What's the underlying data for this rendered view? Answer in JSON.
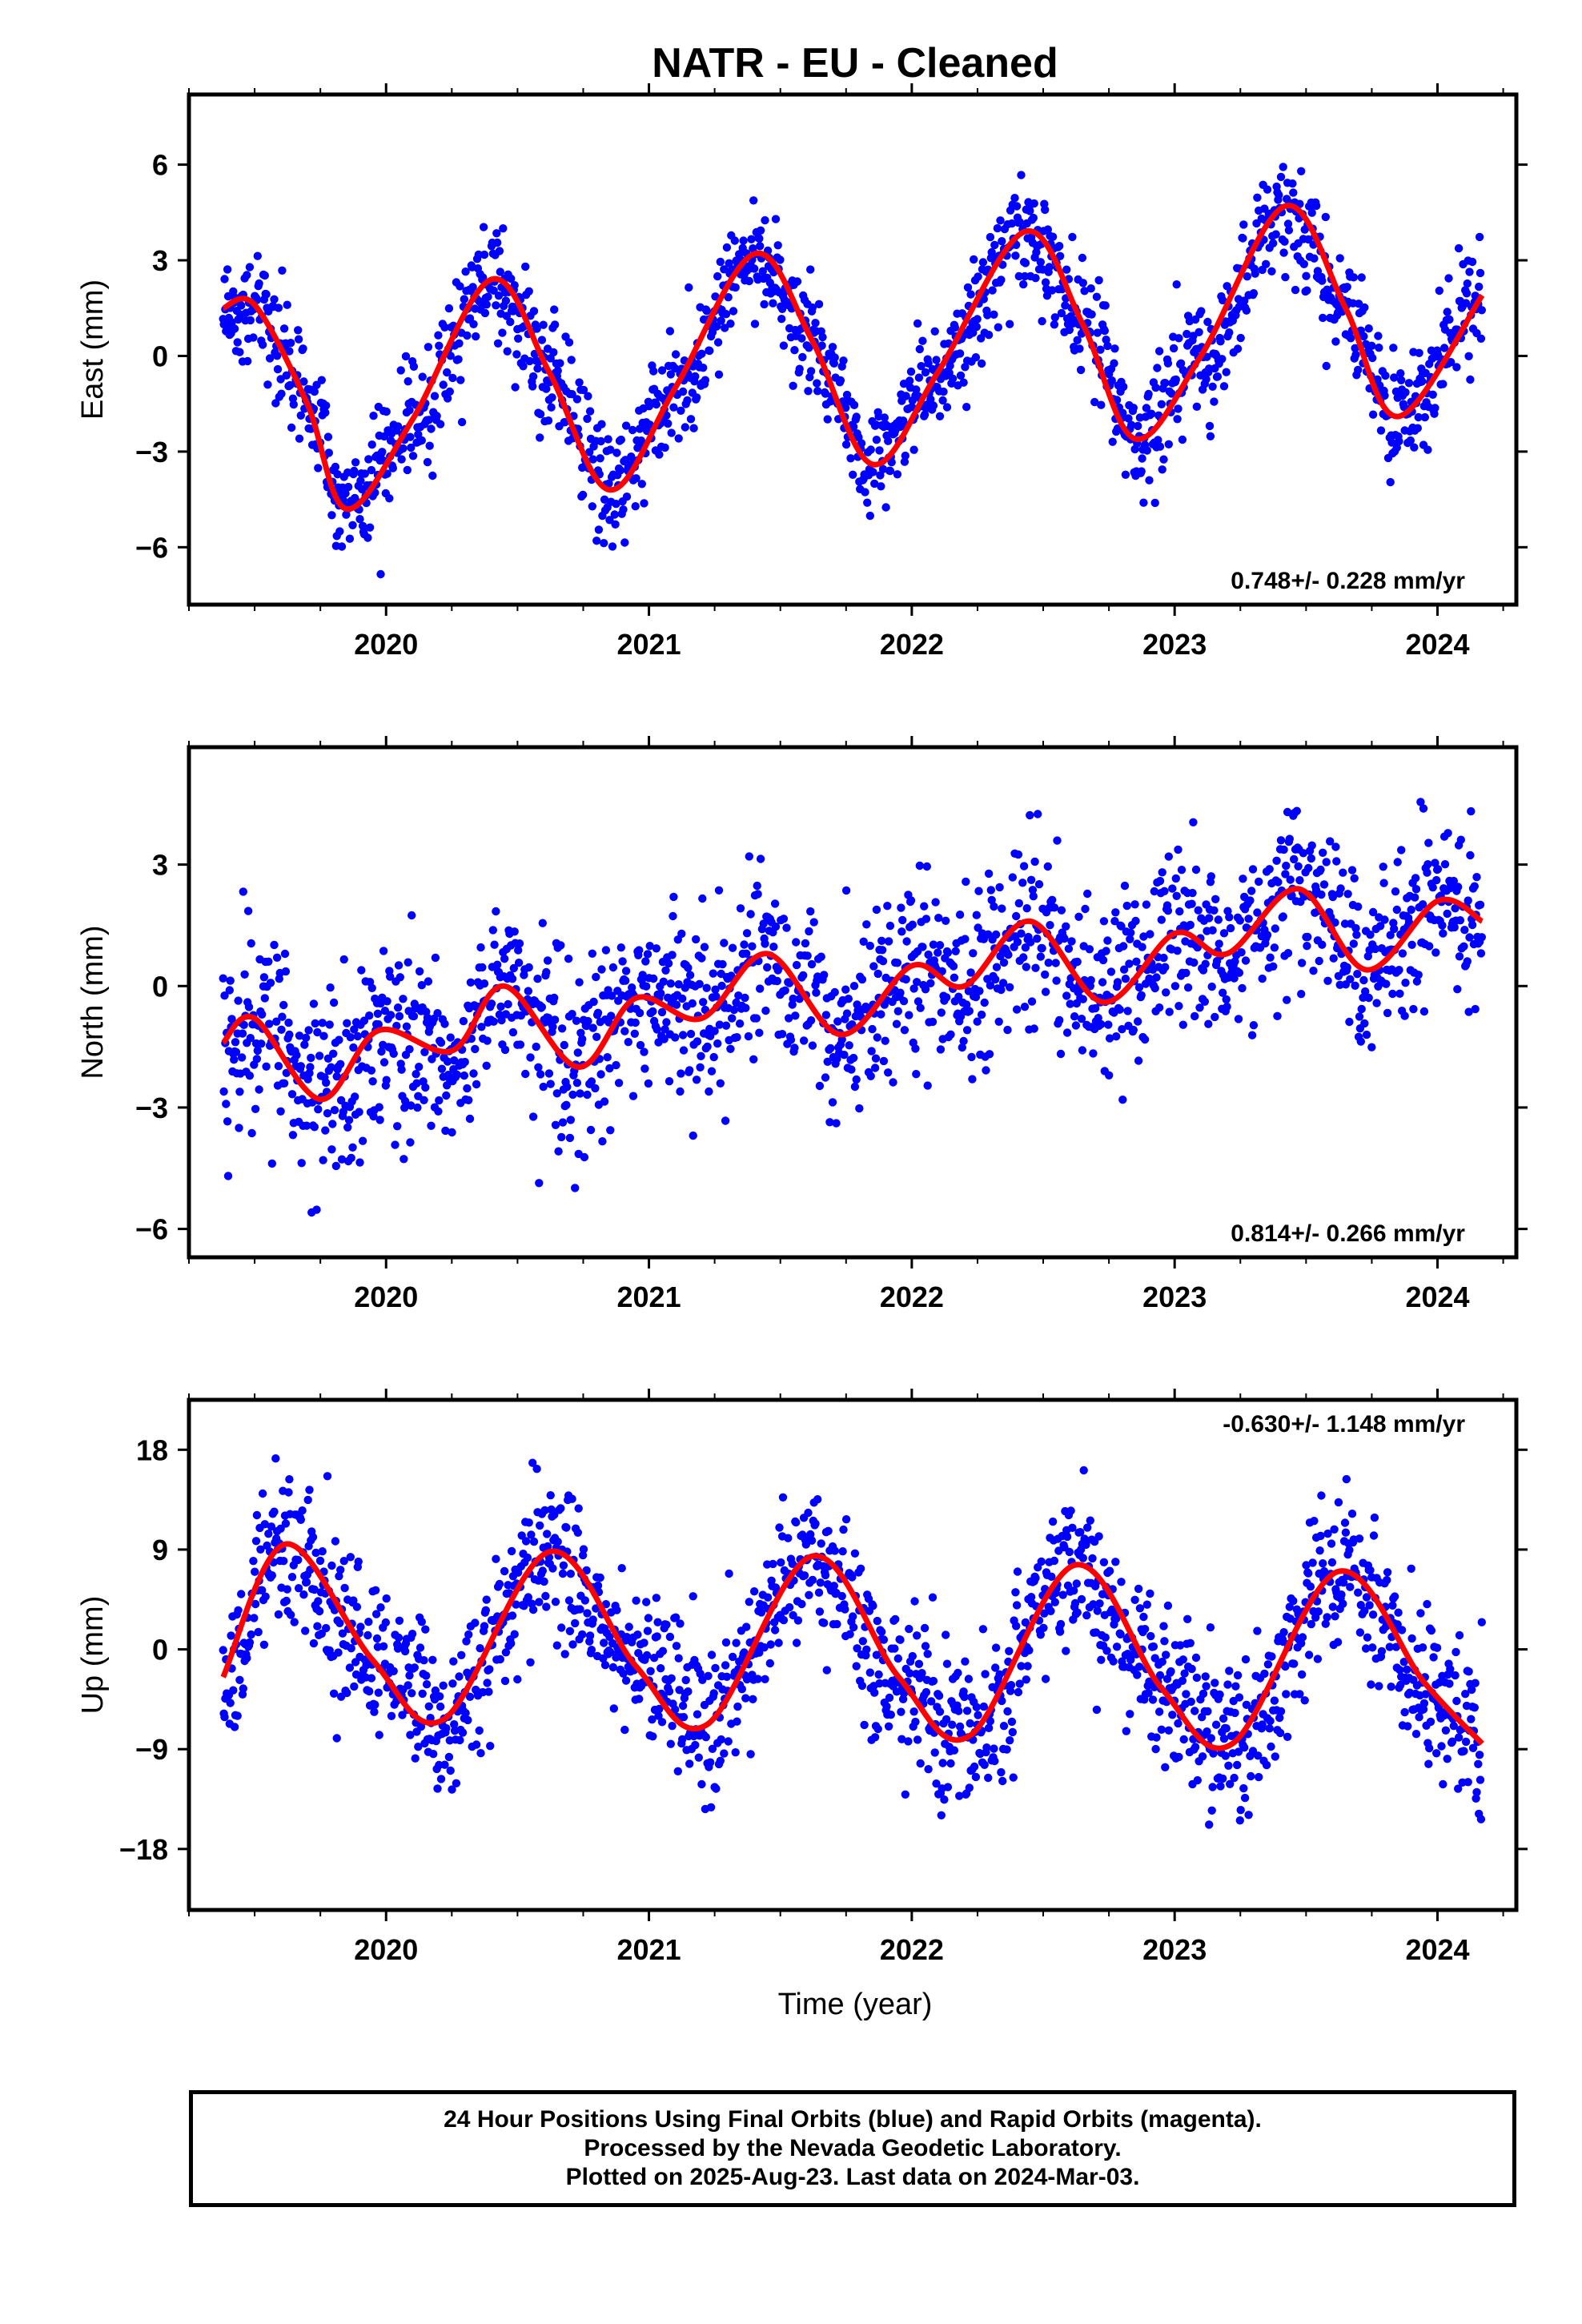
{
  "colors": {
    "final_orbits": "#0000ff",
    "model_fit": "#ff0000",
    "axes": "#000000"
  },
  "chart_data": {
    "type": "scatter",
    "title": "NATR  - EU - Cleaned",
    "xlabel": "Time (year)",
    "xlim": [
      2019.25,
      2024.3
    ],
    "xticks": [
      "2020",
      "2021",
      "2022",
      "2023",
      "2024"
    ],
    "xtick_values": [
      2020,
      2021,
      2022,
      2023,
      2024
    ],
    "last_data": 2024.17,
    "panels": [
      {
        "component": "East",
        "ylabel": "East (mm)",
        "ylim": [
          -7.8,
          8.2
        ],
        "yticks": [
          -6,
          -3,
          0,
          3,
          6
        ],
        "ytick_labels": [
          "−6",
          "−3",
          "0",
          "3",
          "6"
        ],
        "rate_label": "0.748+/- 0.228 mm/yr",
        "rate_position": "bottom-right",
        "model": {
          "offset": -0.43,
          "trend": 0.748,
          "annual_amp": 3.65,
          "annual_phase": -1.2,
          "semi_amp": 0.45,
          "semi_phase": 0.0
        },
        "scatter_sd": 0.9,
        "fit_points": [
          [
            2019.38,
            1.5
          ],
          [
            2019.5,
            1.6
          ],
          [
            2019.7,
            -1.5
          ],
          [
            2019.85,
            -4.8
          ],
          [
            2020.1,
            -2.0
          ],
          [
            2020.4,
            2.4
          ],
          [
            2020.62,
            -0.5
          ],
          [
            2020.85,
            -4.2
          ],
          [
            2021.1,
            -1.0
          ],
          [
            2021.4,
            3.2
          ],
          [
            2021.62,
            0.5
          ],
          [
            2021.85,
            -3.4
          ],
          [
            2022.1,
            -0.5
          ],
          [
            2022.43,
            3.9
          ],
          [
            2022.65,
            1.0
          ],
          [
            2022.85,
            -2.6
          ],
          [
            2023.1,
            0.0
          ],
          [
            2023.42,
            4.7
          ],
          [
            2023.65,
            1.5
          ],
          [
            2023.85,
            -1.9
          ],
          [
            2024.17,
            1.9
          ]
        ]
      },
      {
        "component": "North",
        "ylabel": "North (mm)",
        "ylim": [
          -6.7,
          5.9
        ],
        "yticks": [
          -6,
          -3,
          0,
          3
        ],
        "ytick_labels": [
          "−6",
          "−3",
          "0",
          "3"
        ],
        "rate_label": "0.814+/- 0.266 mm/yr",
        "rate_position": "bottom-right",
        "model": {
          "offset": -0.61,
          "trend": 0.814,
          "annual_amp": 0.8,
          "annual_phase": 1.6,
          "semi_amp": 0.4,
          "semi_phase": 0.5
        },
        "scatter_sd": 1.1,
        "fit_points": [
          [
            2019.38,
            -1.4
          ],
          [
            2019.5,
            -0.8
          ],
          [
            2019.75,
            -2.8
          ],
          [
            2019.97,
            -1.1
          ],
          [
            2020.25,
            -1.6
          ],
          [
            2020.45,
            0.0
          ],
          [
            2020.73,
            -2.0
          ],
          [
            2020.95,
            -0.3
          ],
          [
            2021.2,
            -0.8
          ],
          [
            2021.45,
            0.8
          ],
          [
            2021.73,
            -1.2
          ],
          [
            2022.0,
            0.5
          ],
          [
            2022.2,
            0.0
          ],
          [
            2022.45,
            1.6
          ],
          [
            2022.73,
            -0.4
          ],
          [
            2023.0,
            1.3
          ],
          [
            2023.2,
            0.8
          ],
          [
            2023.47,
            2.4
          ],
          [
            2023.73,
            0.4
          ],
          [
            2024.0,
            2.1
          ],
          [
            2024.17,
            1.6
          ]
        ]
      },
      {
        "component": "Up",
        "ylabel": "Up (mm)",
        "ylim": [
          -23.5,
          22.5
        ],
        "yticks": [
          -18,
          -9,
          0,
          9,
          18
        ],
        "ytick_labels": [
          "−18",
          "−9",
          "0",
          "9",
          "18"
        ],
        "rate_label": "-0.630+/- 1.148 mm/yr",
        "rate_position": "top-right",
        "model": {
          "offset": 1.0,
          "trend": -0.63,
          "annual_amp": 7.8,
          "annual_phase": -2.8,
          "semi_amp": 1.5,
          "semi_phase": 0.3
        },
        "scatter_sd": 3.6,
        "fit_points": [
          [
            2019.38,
            -2.5
          ],
          [
            2019.62,
            9.5
          ],
          [
            2019.95,
            -1.0
          ],
          [
            2020.22,
            -6.3
          ],
          [
            2020.62,
            8.8
          ],
          [
            2020.95,
            -1.5
          ],
          [
            2021.22,
            -6.8
          ],
          [
            2021.62,
            8.4
          ],
          [
            2021.95,
            -2.5
          ],
          [
            2022.22,
            -7.8
          ],
          [
            2022.62,
            7.6
          ],
          [
            2022.95,
            -3.5
          ],
          [
            2023.22,
            -8.5
          ],
          [
            2023.62,
            7.0
          ],
          [
            2023.95,
            -3.0
          ],
          [
            2024.17,
            -8.5
          ]
        ]
      }
    ]
  },
  "footer": {
    "line1": "24 Hour Positions Using Final Orbits (blue) and Rapid Orbits (magenta).",
    "line2": "Processed by the Nevada Geodetic Laboratory.",
    "line3": "Plotted on 2025-Aug-23. Last data on 2024-Mar-03."
  }
}
